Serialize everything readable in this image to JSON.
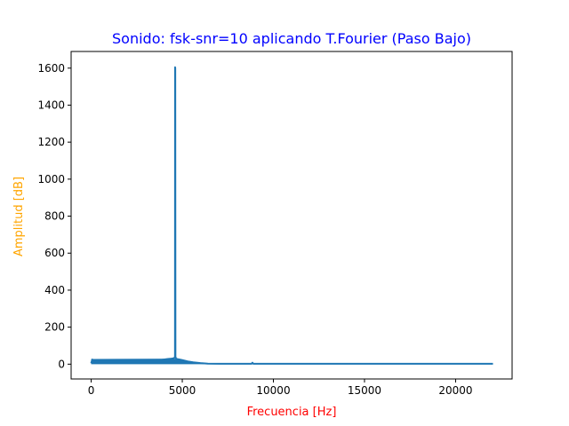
{
  "chart_data": {
    "type": "line",
    "title": "Sonido: fsk-snr=10 aplicando T.Fourier (Paso Bajo)",
    "xlabel": "Frecuencia [Hz]",
    "ylabel": "Amplitud [dB]",
    "xlim": [
      -1100,
      23100
    ],
    "ylim": [
      -80,
      1690
    ],
    "xticks": [
      0,
      5000,
      10000,
      15000,
      20000
    ],
    "yticks": [
      0,
      200,
      400,
      600,
      800,
      1000,
      1200,
      1400,
      1600
    ],
    "grid": false,
    "colors": {
      "title": "#0000ff",
      "xlabel": "#ff0000",
      "ylabel": "#ffa500",
      "series": "#1f77b4"
    },
    "series": [
      {
        "x": [
          0,
          60,
          200,
          500,
          1000,
          1500,
          2000,
          2500,
          3000,
          3500,
          3900,
          4200,
          4400,
          4550,
          4600,
          4605,
          4615,
          4625,
          4660,
          4800,
          5000,
          5300,
          5600,
          6000,
          6400,
          7000,
          8000,
          8800,
          8850,
          8900,
          10000,
          12000,
          15000,
          18000,
          20000,
          22050
        ],
        "y": [
          5,
          25,
          15,
          16,
          17,
          18,
          18,
          19,
          20,
          21,
          24,
          28,
          30,
          32,
          40,
          1605,
          1600,
          40,
          30,
          26,
          22,
          15,
          10,
          6,
          3,
          2,
          2,
          2,
          8,
          2,
          2,
          2,
          2,
          2,
          2,
          2
        ]
      }
    ]
  }
}
